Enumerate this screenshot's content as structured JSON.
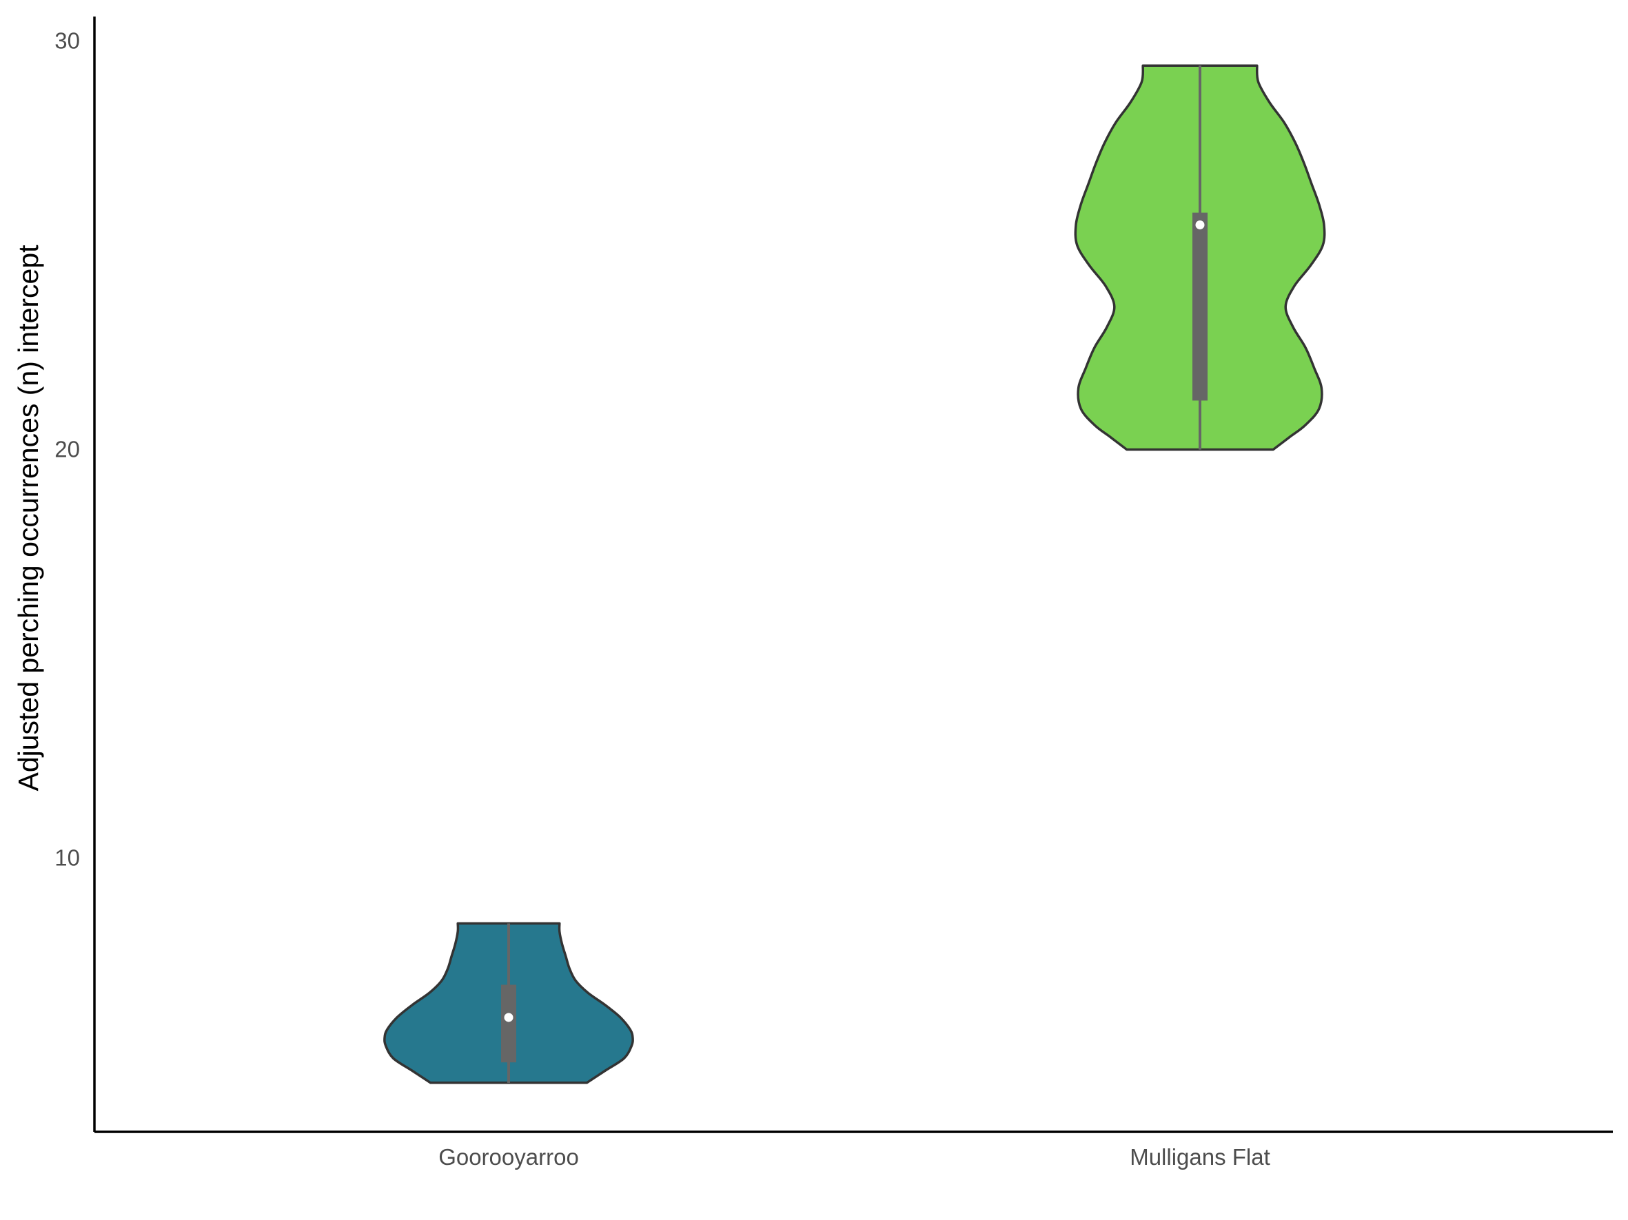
{
  "chart_data": {
    "type": "violin",
    "title": "",
    "xlabel": "",
    "ylabel": "Adjusted perching occurrences (n) intercept",
    "ylim": [
      3.3,
      30.6
    ],
    "yticks": [
      10,
      20,
      30
    ],
    "y_tick_labels": [
      "10",
      "20",
      "30"
    ],
    "grid": false,
    "legend": "none",
    "categories": [
      "Goorooyarroo",
      "Mulligans Flat"
    ],
    "groups": [
      {
        "category": "Goorooyarroo",
        "fill": "#26788E",
        "min": 4.5,
        "max": 8.4,
        "q1": 5.0,
        "median": 6.1,
        "q3": 6.9,
        "density": [
          [
            4.5,
            0.63
          ],
          [
            4.8,
            0.78
          ],
          [
            5.1,
            0.93
          ],
          [
            5.4,
            0.99
          ],
          [
            5.6,
            1.0
          ],
          [
            5.8,
            0.98
          ],
          [
            6.1,
            0.9
          ],
          [
            6.4,
            0.78
          ],
          [
            6.7,
            0.64
          ],
          [
            7.0,
            0.54
          ],
          [
            7.3,
            0.49
          ],
          [
            7.6,
            0.46
          ],
          [
            7.9,
            0.43
          ],
          [
            8.2,
            0.41
          ],
          [
            8.4,
            0.41
          ]
        ]
      },
      {
        "category": "Mulligans Flat",
        "fill": "#7AD151",
        "min": 20.0,
        "max": 29.4,
        "q1": 21.2,
        "median": 25.5,
        "q3": 25.8,
        "density": [
          [
            20.0,
            0.59
          ],
          [
            20.3,
            0.72
          ],
          [
            20.6,
            0.85
          ],
          [
            21.0,
            0.96
          ],
          [
            21.5,
            0.98
          ],
          [
            22.0,
            0.92
          ],
          [
            22.5,
            0.85
          ],
          [
            23.0,
            0.75
          ],
          [
            23.5,
            0.69
          ],
          [
            24.0,
            0.76
          ],
          [
            24.5,
            0.89
          ],
          [
            25.0,
            0.99
          ],
          [
            25.5,
            1.0
          ],
          [
            26.0,
            0.96
          ],
          [
            26.5,
            0.9
          ],
          [
            27.0,
            0.84
          ],
          [
            27.5,
            0.77
          ],
          [
            28.0,
            0.68
          ],
          [
            28.5,
            0.56
          ],
          [
            29.0,
            0.47
          ],
          [
            29.4,
            0.46
          ]
        ]
      }
    ]
  },
  "colors": {
    "axis": "#000000",
    "tick_text": "#4d4d4d",
    "outline": "#333333",
    "box": "#666666",
    "median_dot": "#ffffff"
  }
}
